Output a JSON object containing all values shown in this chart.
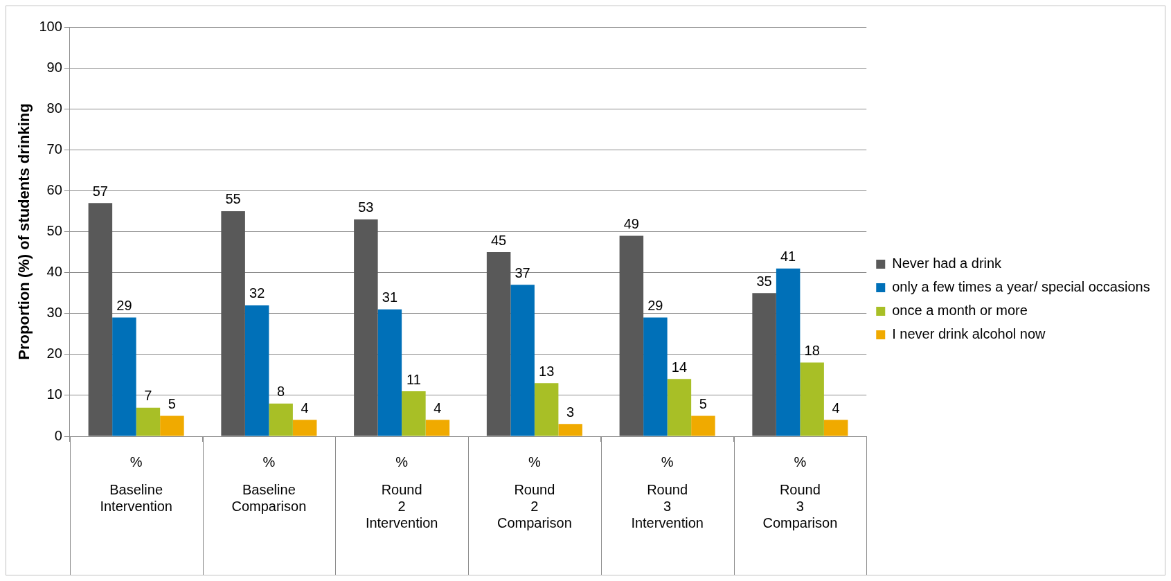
{
  "chart_data": {
    "type": "bar",
    "ylabel": "Proportion (%) of students drinking",
    "categories": [
      "Baseline Intervention",
      "Baseline Comparison",
      "Round 2 Intervention",
      "Round 2 Comparison",
      "Round 3 Intervention",
      "Round 3 Comparison"
    ],
    "series": [
      {
        "name": "Never had a drink",
        "color": "#595959",
        "values": [
          57,
          55,
          53,
          45,
          49,
          35
        ]
      },
      {
        "name": "only a few times a year/ special occasions",
        "color": "#0070b8",
        "values": [
          29,
          32,
          31,
          37,
          29,
          41
        ]
      },
      {
        "name": "once a month or more",
        "color": "#a8bf26",
        "values": [
          7,
          8,
          11,
          13,
          14,
          18
        ]
      },
      {
        "name": "I never drink alcohol now",
        "color": "#f0aa00",
        "values": [
          5,
          4,
          4,
          3,
          5,
          4
        ]
      }
    ],
    "ylim": [
      0,
      100
    ],
    "yticks": [
      0,
      10,
      20,
      30,
      40,
      50,
      60,
      70,
      80,
      90,
      100
    ],
    "grid": "y",
    "legend": "right",
    "data_labels": true,
    "annotations": [
      "%",
      "%",
      "%",
      "%",
      "%",
      "%"
    ]
  }
}
